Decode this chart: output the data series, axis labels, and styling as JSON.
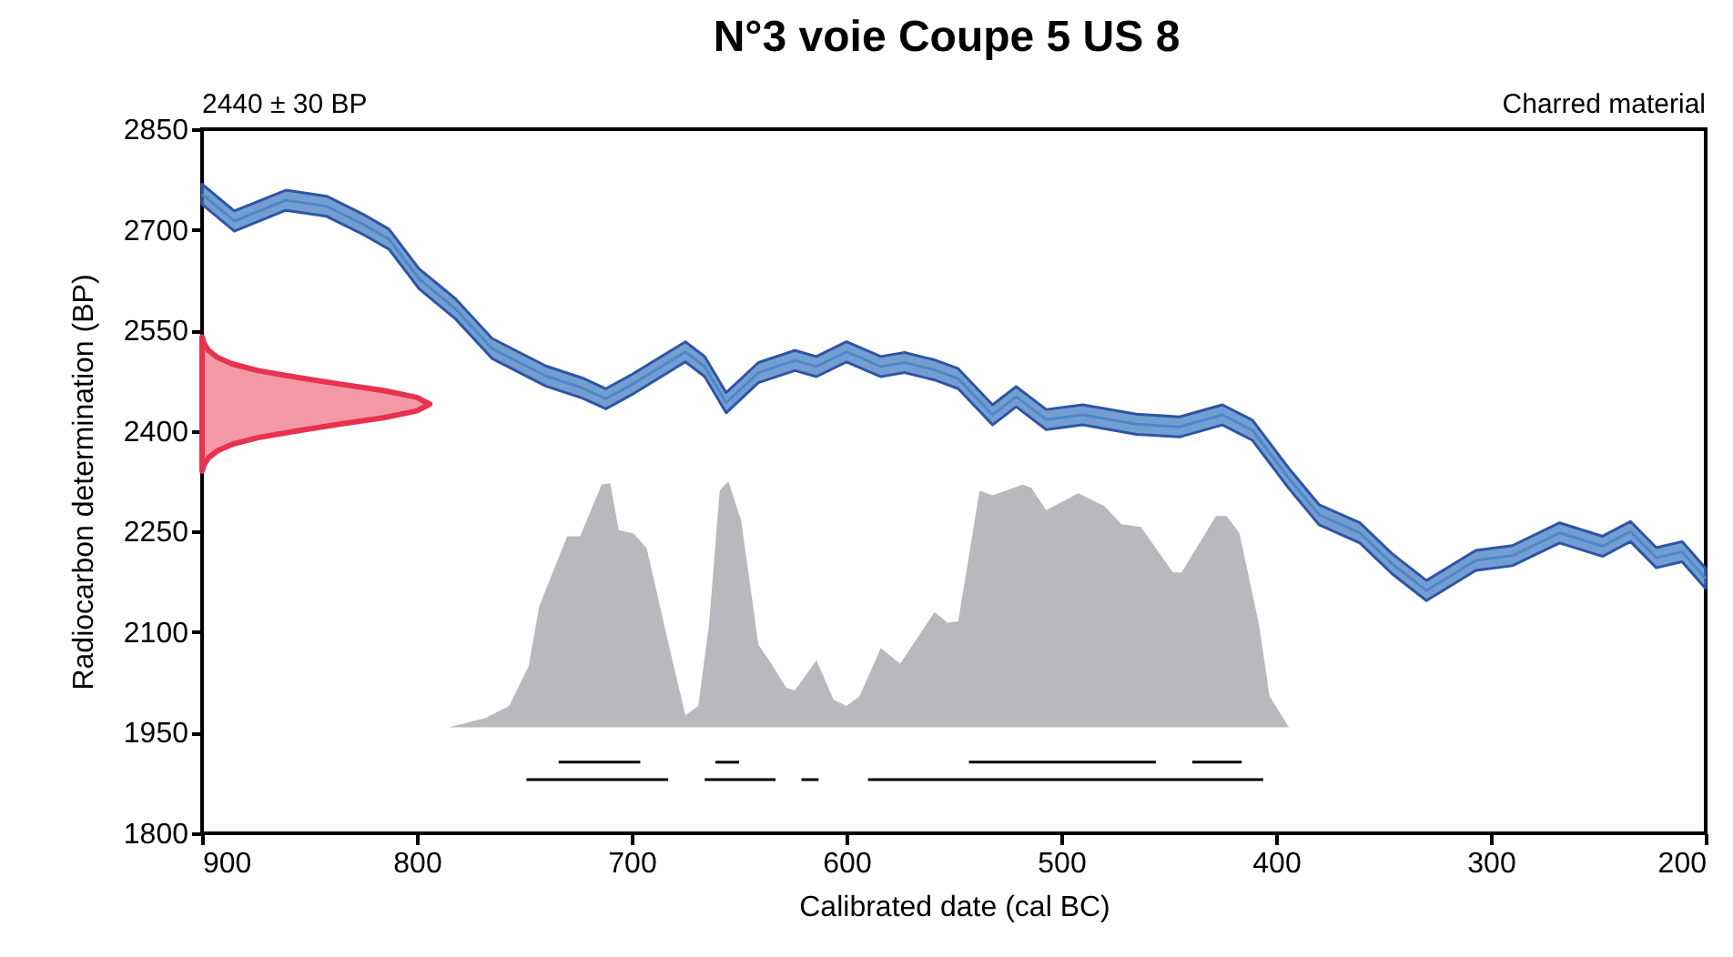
{
  "chart_data": {
    "type": "line",
    "title": "N°3 voie Coupe 5 US 8",
    "xlabel": "Calibrated date (cal BC)",
    "ylabel": "Radiocarbon determination (BP)",
    "annotations": [
      "2440 ± 30 BP",
      "Charred material"
    ],
    "xlim": [
      900,
      200
    ],
    "xticks": [
      900,
      800,
      700,
      600,
      500,
      400,
      300,
      200
    ],
    "ylim": [
      1800,
      2850
    ],
    "yticks": [
      1800,
      1950,
      2100,
      2250,
      2400,
      2550,
      2700,
      2850
    ],
    "grid": false,
    "series": [
      {
        "color": "#4f86c6",
        "x": [
          900,
          885,
          861,
          842,
          825,
          813,
          799,
          782,
          765,
          740,
          723,
          712,
          700,
          675,
          666,
          656,
          641,
          624,
          614,
          600,
          584,
          573,
          559,
          548,
          532,
          521,
          507,
          490,
          465,
          445,
          425,
          411,
          394,
          380,
          361,
          346,
          330,
          307,
          290,
          268,
          248,
          235,
          223,
          211,
          200
        ],
        "values": [
          2753,
          2713,
          2744,
          2735,
          2708,
          2686,
          2627,
          2582,
          2523,
          2482,
          2464,
          2448,
          2469,
          2518,
          2496,
          2442,
          2487,
          2505,
          2496,
          2518,
          2496,
          2502,
          2491,
          2478,
          2424,
          2451,
          2417,
          2424,
          2410,
          2406,
          2424,
          2401,
          2329,
          2275,
          2248,
          2202,
          2162,
          2207,
          2214,
          2248,
          2228,
          2250,
          2211,
          2220,
          2180
        ],
        "lower": [
          2738,
          2698,
          2729,
          2720,
          2693,
          2671,
          2612,
          2567,
          2508,
          2467,
          2449,
          2433,
          2454,
          2503,
          2481,
          2427,
          2472,
          2490,
          2481,
          2503,
          2481,
          2487,
          2476,
          2463,
          2409,
          2436,
          2402,
          2409,
          2395,
          2391,
          2409,
          2386,
          2314,
          2260,
          2233,
          2187,
          2147,
          2192,
          2199,
          2233,
          2213,
          2235,
          2196,
          2205,
          2165
        ],
        "upper": [
          2768,
          2728,
          2759,
          2750,
          2723,
          2701,
          2642,
          2597,
          2538,
          2497,
          2479,
          2463,
          2484,
          2533,
          2511,
          2457,
          2502,
          2520,
          2511,
          2533,
          2511,
          2517,
          2506,
          2493,
          2439,
          2466,
          2432,
          2439,
          2425,
          2421,
          2439,
          2416,
          2344,
          2290,
          2263,
          2217,
          2177,
          2222,
          2229,
          2263,
          2243,
          2265,
          2226,
          2235,
          2195
        ]
      },
      {
        "type": "area",
        "color": "#e8334e",
        "x": [
          900,
          899,
          897,
          893,
          886,
          874,
          856,
          836,
          815,
          800,
          794,
          800,
          815,
          836,
          856,
          874,
          886,
          893,
          897,
          899,
          900
        ],
        "values": [
          2340,
          2350,
          2360,
          2370,
          2380,
          2390,
          2400,
          2410,
          2420,
          2430,
          2440,
          2450,
          2460,
          2470,
          2480,
          2490,
          2500,
          2510,
          2520,
          2530,
          2540
        ]
      },
      {
        "type": "area",
        "color": "#b8b9bc",
        "x": [
          785,
          768,
          757,
          748,
          743,
          730,
          724,
          714,
          710,
          706,
          699,
          693,
          683,
          675,
          669,
          664,
          659,
          655,
          649,
          641,
          635,
          628,
          624,
          614,
          606,
          600,
          594,
          584,
          575,
          559,
          553,
          548,
          538,
          532,
          518,
          514,
          507,
          492,
          480,
          472,
          463,
          448,
          444,
          428,
          423,
          417,
          408,
          403,
          394
        ],
        "values": [
          1958,
          1972,
          1990,
          2049,
          2139,
          2243,
          2243,
          2320,
          2322,
          2252,
          2247,
          2225,
          2085,
          1976,
          1990,
          2111,
          2311,
          2325,
          2266,
          2081,
          2053,
          2017,
          2013,
          2058,
          1999,
          1990,
          2004,
          2076,
          2053,
          2130,
          2114,
          2116,
          2311,
          2304,
          2320,
          2315,
          2282,
          2307,
          2288,
          2261,
          2257,
          2189,
          2189,
          2273,
          2273,
          2247,
          2112,
          2004,
          1958
        ]
      },
      {
        "color": "#000000",
        "x": [
          734,
          696
        ],
        "values": [
          1906,
          1906
        ]
      },
      {
        "color": "#000000",
        "x": [
          661,
          650
        ],
        "values": [
          1906,
          1906
        ]
      },
      {
        "color": "#000000",
        "x": [
          543,
          456
        ],
        "values": [
          1906,
          1906
        ]
      },
      {
        "color": "#000000",
        "x": [
          439,
          416
        ],
        "values": [
          1906,
          1906
        ]
      },
      {
        "color": "#000000",
        "x": [
          749,
          683
        ],
        "values": [
          1880,
          1880
        ]
      },
      {
        "color": "#000000",
        "x": [
          666,
          633
        ],
        "values": [
          1880,
          1880
        ]
      },
      {
        "color": "#000000",
        "x": [
          621,
          613
        ],
        "values": [
          1880,
          1880
        ]
      },
      {
        "color": "#000000",
        "x": [
          590,
          406
        ],
        "values": [
          1880,
          1880
        ]
      }
    ]
  }
}
